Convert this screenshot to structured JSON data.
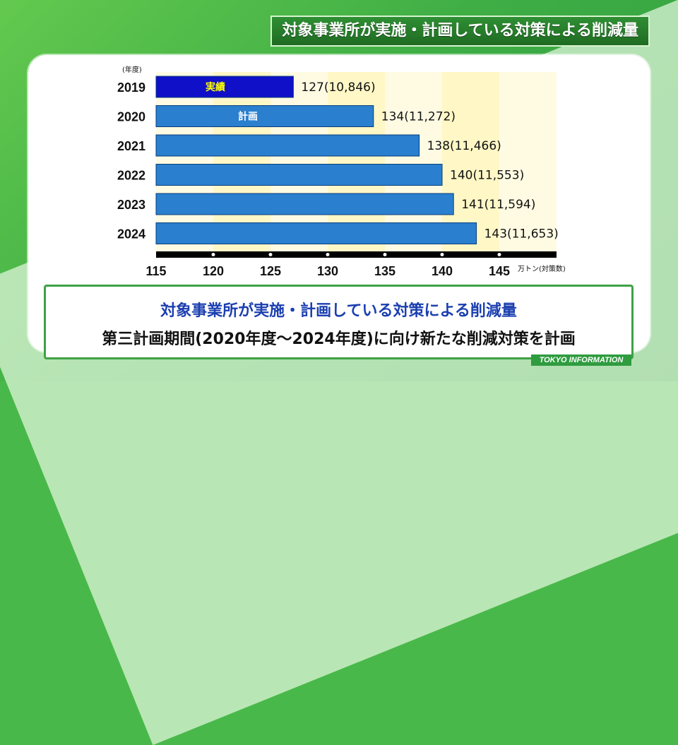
{
  "header": {
    "title": "対象事業所が実施・計画している対策による削減量"
  },
  "chart_data": {
    "type": "bar",
    "orientation": "horizontal",
    "categories": [
      "2019",
      "2020",
      "2021",
      "2022",
      "2023",
      "2024"
    ],
    "values": [
      127,
      134,
      138,
      140,
      141,
      143
    ],
    "value_labels": [
      "127(10,846)",
      "134(11,272)",
      "138(11,466)",
      "140(11,553)",
      "141(11,594)",
      "143(11,653)"
    ],
    "bar_tags": [
      "実績",
      "計画",
      "",
      "",
      "",
      ""
    ],
    "category_axis_label": "(年度)",
    "value_axis_label": "万トン(対策数)",
    "xticks": [
      "115",
      "120",
      "125",
      "130",
      "135",
      "140",
      "145"
    ],
    "xlim": [
      115,
      150
    ],
    "colors": {
      "actual": "#1010c8",
      "plan": "#2a7fcf",
      "actual_tag": "#ffff00",
      "plan_tag": "#ffffff"
    }
  },
  "caption": {
    "line1": "対象事業所が実施・計画している対策による削減量",
    "line2": "第三計画期間(2020年度～2024年度)に向け新たな削減対策を計画"
  },
  "branding": {
    "logo": "TOKYO INFORMATION"
  }
}
